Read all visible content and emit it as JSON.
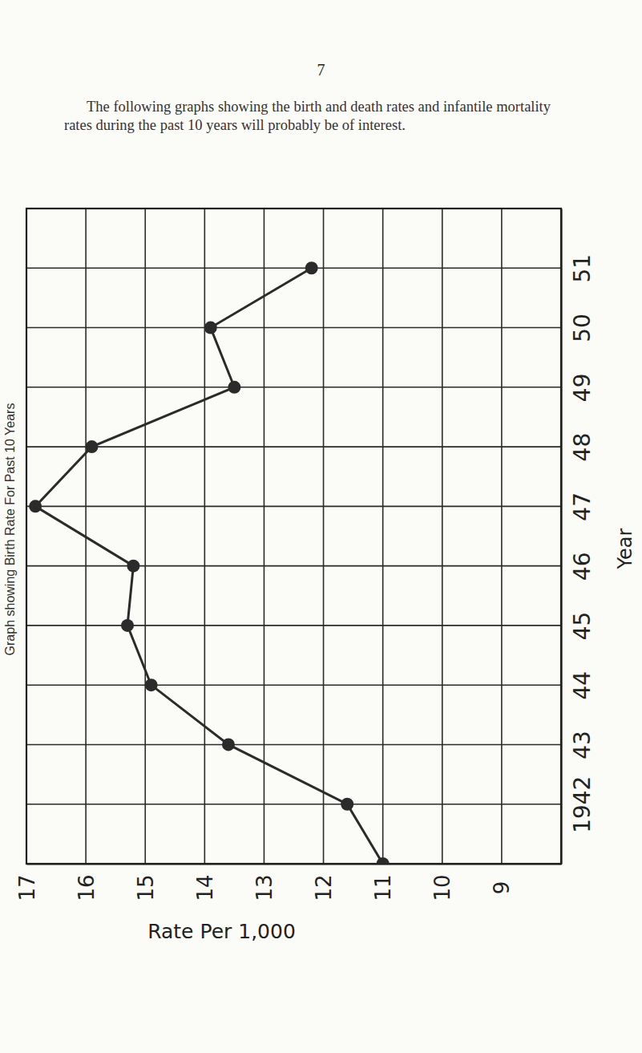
{
  "page_number": "7",
  "intro": "The following graphs showing the birth and death rates and infantile mortality rates during the past 10 years will probably be of interest.",
  "chart_data": {
    "type": "line",
    "title": "Graph showing Birth Rate For Past 10 Years",
    "x_label": "Rate Per 1,000",
    "y_label": "Year",
    "orientation": "horizontal",
    "categories": [
      null,
      "1942",
      "43",
      "44",
      "45",
      "46",
      "47",
      "48",
      "49",
      "50",
      "51"
    ],
    "values": [
      11.0,
      11.6,
      13.6,
      14.9,
      15.3,
      15.2,
      16.85,
      15.9,
      13.5,
      13.9,
      12.2
    ],
    "xlim": [
      17,
      8
    ],
    "xticks": [
      17,
      16,
      15,
      14,
      13,
      12,
      11,
      10,
      9
    ],
    "grid": true,
    "color": "#2b2b2b",
    "marker": "circle"
  }
}
